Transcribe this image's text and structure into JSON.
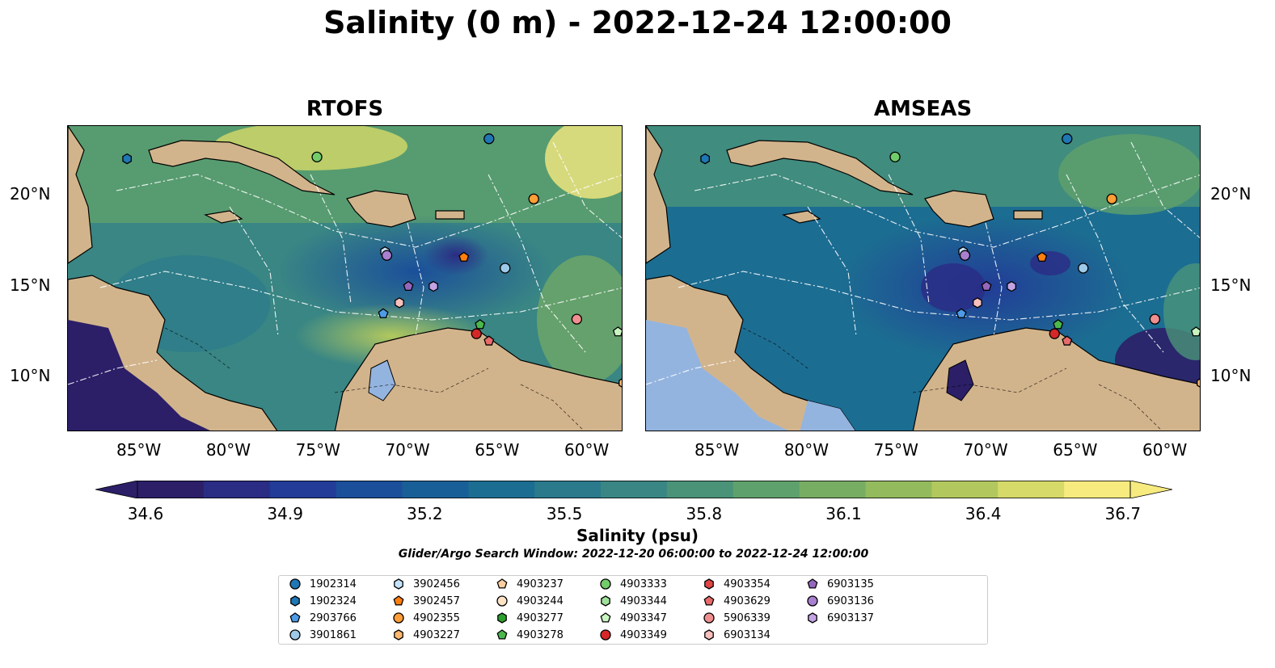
{
  "title": "Salinity (0 m) - 2022-12-24 12:00:00",
  "panels": [
    {
      "title": "RTOFS"
    },
    {
      "title": "AMSEAS"
    }
  ],
  "lon_labels": [
    "85°W",
    "80°W",
    "75°W",
    "70°W",
    "65°W",
    "60°W"
  ],
  "lat_labels": [
    "20°N",
    "15°N",
    "10°N"
  ],
  "colorbar": {
    "ticks": [
      "34.6",
      "34.9",
      "35.2",
      "35.5",
      "35.8",
      "36.1",
      "36.4",
      "36.7"
    ],
    "label": "Salinity (psu)",
    "colors": [
      "#2c1f68",
      "#2b2c84",
      "#223c97",
      "#1b4f9a",
      "#195f97",
      "#1c6d92",
      "#2a7a8c",
      "#398684",
      "#4a9379",
      "#5fa16c",
      "#77ad63",
      "#93ba5d",
      "#b2c85e",
      "#d6da68",
      "#f7ea7f"
    ]
  },
  "search_window": "Glider/Argo Search Window: 2022-12-20 06:00:00 to 2022-12-24 12:00:00",
  "legend": [
    {
      "id": "1902314",
      "marker": "circle",
      "color": "#1f77b4"
    },
    {
      "id": "1902324",
      "marker": "hexagon",
      "color": "#1f77b4"
    },
    {
      "id": "2903766",
      "marker": "pentagon",
      "color": "#4c9be8"
    },
    {
      "id": "3901861",
      "marker": "circle",
      "color": "#9ecae9"
    },
    {
      "id": "3902456",
      "marker": "hexagon",
      "color": "#c6e2f7"
    },
    {
      "id": "3902457",
      "marker": "pentagon",
      "color": "#ff7f0e"
    },
    {
      "id": "4902355",
      "marker": "circle",
      "color": "#ff9e36"
    },
    {
      "id": "4903227",
      "marker": "hexagon",
      "color": "#ffb870"
    },
    {
      "id": "4903237",
      "marker": "pentagon",
      "color": "#ffcfa0"
    },
    {
      "id": "4903244",
      "marker": "circle",
      "color": "#ffe3c6"
    },
    {
      "id": "4903277",
      "marker": "hexagon",
      "color": "#2ca02c"
    },
    {
      "id": "4903278",
      "marker": "pentagon",
      "color": "#4cb84c"
    },
    {
      "id": "4903333",
      "marker": "circle",
      "color": "#72cc6a"
    },
    {
      "id": "4903344",
      "marker": "hexagon",
      "color": "#9fe09a"
    },
    {
      "id": "4903347",
      "marker": "pentagon",
      "color": "#c8f4c0"
    },
    {
      "id": "4903349",
      "marker": "circle",
      "color": "#d62728"
    },
    {
      "id": "4903354",
      "marker": "hexagon",
      "color": "#e04545"
    },
    {
      "id": "4903629",
      "marker": "pentagon",
      "color": "#e86a6a"
    },
    {
      "id": "5906339",
      "marker": "circle",
      "color": "#f08f8f"
    },
    {
      "id": "6903134",
      "marker": "hexagon",
      "color": "#f7c0bc"
    },
    {
      "id": "6903135",
      "marker": "pentagon",
      "color": "#9467bd"
    },
    {
      "id": "6903136",
      "marker": "circle",
      "color": "#a97fd0"
    },
    {
      "id": "6903137",
      "marker": "hexagon",
      "color": "#c3a3e3"
    }
  ],
  "map_extent": {
    "lon_min": -89,
    "lon_max": -58,
    "lat_min": 7,
    "lat_max": 23.8
  },
  "platforms": [
    {
      "id": "1902314",
      "lon": -65.5,
      "lat": 23.1
    },
    {
      "id": "1902324",
      "lon": -85.7,
      "lat": 22.0
    },
    {
      "id": "4903333",
      "lon": -75.1,
      "lat": 22.1
    },
    {
      "id": "4902355",
      "lon": -63.0,
      "lat": 19.8
    },
    {
      "id": "3902456",
      "lon": -71.3,
      "lat": 16.9
    },
    {
      "id": "6903136",
      "lon": -71.2,
      "lat": 16.7
    },
    {
      "id": "3902457",
      "lon": -66.9,
      "lat": 16.6
    },
    {
      "id": "3901861",
      "lon": -64.6,
      "lat": 16.0
    },
    {
      "id": "6903135",
      "lon": -70.0,
      "lat": 15.0
    },
    {
      "id": "6903137",
      "lon": -68.6,
      "lat": 15.0
    },
    {
      "id": "6903134",
      "lon": -70.5,
      "lat": 14.1
    },
    {
      "id": "2903766",
      "lon": -71.4,
      "lat": 13.5
    },
    {
      "id": "4903278",
      "lon": -66.0,
      "lat": 12.9
    },
    {
      "id": "4903349",
      "lon": -66.2,
      "lat": 12.4
    },
    {
      "id": "4903629",
      "lon": -65.5,
      "lat": 12.0
    },
    {
      "id": "5906339",
      "lon": -60.6,
      "lat": 13.2
    },
    {
      "id": "4903347",
      "lon": -58.3,
      "lat": 12.5
    },
    {
      "id": "4903227",
      "lon": -58.0,
      "lat": 9.7
    }
  ]
}
